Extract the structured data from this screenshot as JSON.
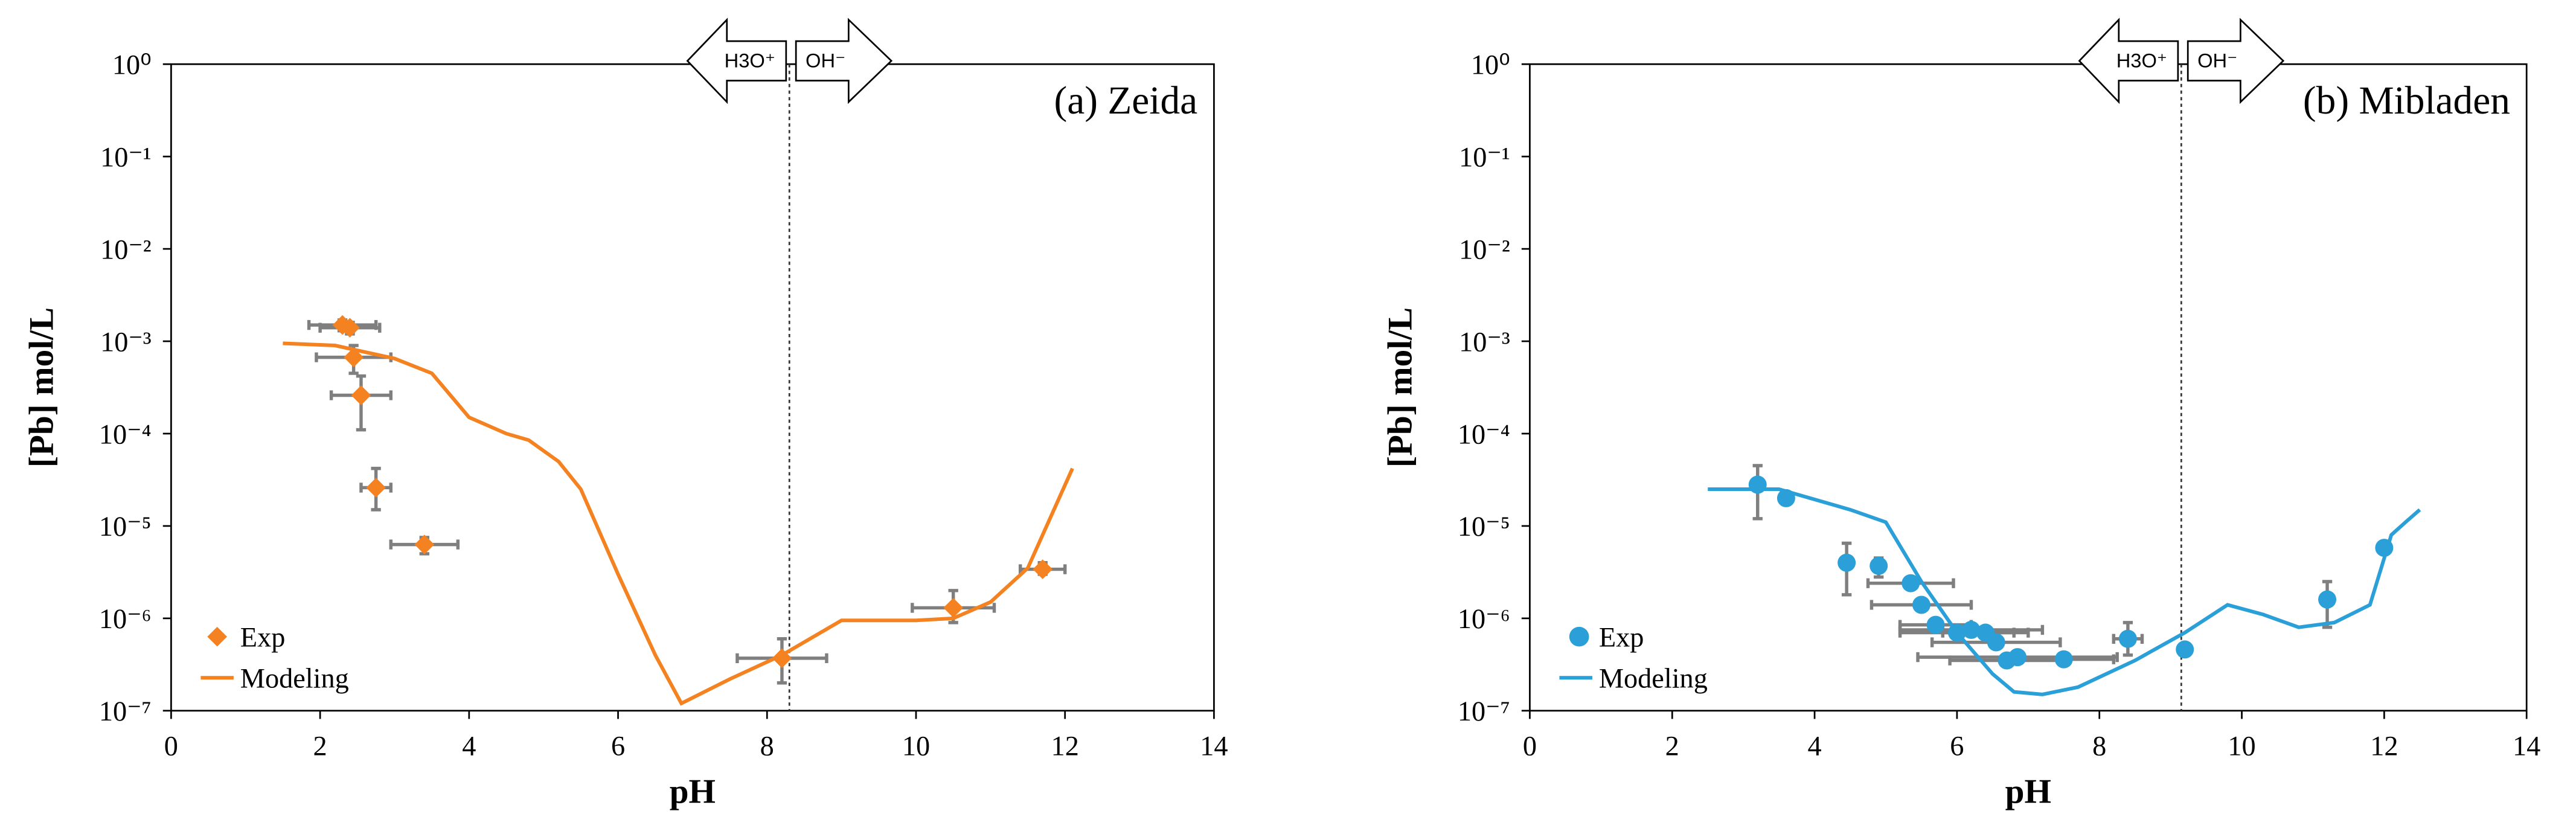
{
  "chart_data": [
    {
      "type": "scatter",
      "annotation": "(a) Zeida",
      "x_label": "pH",
      "y_label": "[Pb] mol/L",
      "xlim": [
        0,
        14
      ],
      "xticks": [
        0,
        2,
        4,
        6,
        8,
        10,
        12,
        14
      ],
      "ylim": [
        1e-07,
        1
      ],
      "log_y": true,
      "yticks": [
        {
          "value": 1e-07,
          "label": "10⁻⁷"
        },
        {
          "value": 1e-06,
          "label": "10⁻⁶"
        },
        {
          "value": 1e-05,
          "label": "10⁻⁵"
        },
        {
          "value": 0.0001,
          "label": "10⁻⁴"
        },
        {
          "value": 0.001,
          "label": "10⁻³"
        },
        {
          "value": 0.01,
          "label": "10⁻²"
        },
        {
          "value": 0.1,
          "label": "10⁻¹"
        },
        {
          "value": 1,
          "label": "10⁰"
        }
      ],
      "divider_x": 8.3,
      "arrows": [
        "H3O⁺",
        "OH⁻"
      ],
      "legend": "lower left",
      "series": [
        {
          "name": "Exp",
          "color": "#f58220",
          "marker": "diamond",
          "x": [
            2.3,
            2.4,
            2.45,
            2.55,
            2.75,
            3.4,
            8.2,
            10.5,
            11.7
          ],
          "values": [
            0.0015,
            0.0014,
            0.00067,
            0.00026,
            2.6e-05,
            6.3e-06,
            3.7e-07,
            1.3e-06,
            3.4e-06
          ],
          "x_err": [
            0.45,
            0.4,
            0.5,
            0.4,
            0.2,
            0.45,
            0.6,
            0.55,
            0.3
          ],
          "y_low": [
            0.0013,
            0.0012,
            0.00045,
            0.00011,
            1.5e-05,
            5e-06,
            2e-07,
            9e-07,
            3e-06
          ],
          "y_high": [
            0.0017,
            0.0016,
            0.0009,
            0.00042,
            4.2e-05,
            7.5e-06,
            6e-07,
            2e-06,
            4e-06
          ]
        },
        {
          "name": "Modeling",
          "color": "#f58220",
          "x": [
            1.5,
            2.2,
            3,
            3.5,
            4,
            4.5,
            4.8,
            5.2,
            5.5,
            6,
            6.5,
            6.85,
            7.5,
            8.2,
            9,
            10,
            10.5,
            11,
            11.5,
            12.1
          ],
          "values": [
            0.00095,
            0.0009,
            0.00065,
            0.00045,
            0.00015,
            0.0001,
            8.5e-05,
            5e-05,
            2.5e-05,
            3e-06,
            4e-07,
            1.2e-07,
            2.2e-07,
            4e-07,
            9.5e-07,
            9.5e-07,
            1e-06,
            1.5e-06,
            3.5e-06,
            4.2e-05
          ]
        }
      ]
    },
    {
      "type": "scatter",
      "annotation": "(b) Mibladen",
      "x_label": "pH",
      "y_label": "[Pb] mol/L",
      "xlim": [
        0,
        14
      ],
      "xticks": [
        0,
        2,
        4,
        6,
        8,
        10,
        12,
        14
      ],
      "ylim": [
        1e-07,
        1
      ],
      "log_y": true,
      "yticks": [
        {
          "value": 1e-07,
          "label": "10⁻⁷"
        },
        {
          "value": 1e-06,
          "label": "10⁻⁶"
        },
        {
          "value": 1e-05,
          "label": "10⁻⁵"
        },
        {
          "value": 0.0001,
          "label": "10⁻⁴"
        },
        {
          "value": 0.001,
          "label": "10⁻³"
        },
        {
          "value": 0.01,
          "label": "10⁻²"
        },
        {
          "value": 0.1,
          "label": "10⁻¹"
        },
        {
          "value": 1,
          "label": "10⁰"
        }
      ],
      "divider_x": 9.15,
      "arrows": [
        "H3O⁺",
        "OH⁻"
      ],
      "legend": "lower left",
      "series": [
        {
          "name": "Exp",
          "color": "#2a9fd8",
          "marker": "circle",
          "x": [
            3.2,
            3.6,
            4.45,
            4.9,
            5.35,
            5.5,
            5.7,
            6.0,
            6.2,
            6.4,
            6.55,
            6.7,
            6.85,
            7.5,
            8.4,
            9.2,
            11.2,
            12
          ],
          "values": [
            2.8e-05,
            2e-05,
            4e-06,
            3.7e-06,
            2.4e-06,
            1.4e-06,
            8.5e-07,
            7e-07,
            7.5e-07,
            7e-07,
            5.5e-07,
            3.5e-07,
            3.8e-07,
            3.6e-07,
            6e-07,
            4.6e-07,
            1.6e-06,
            5.8e-06
          ],
          "x_err": [
            null,
            null,
            null,
            null,
            0.6,
            0.7,
            0.5,
            0.8,
            1.0,
            0.6,
            0.9,
            0.8,
            1.4,
            0.7,
            0.2,
            null,
            null,
            null
          ],
          "y_low": [
            1.2e-05,
            null,
            1.8e-06,
            2.8e-06,
            null,
            null,
            null,
            null,
            null,
            null,
            null,
            null,
            null,
            null,
            4e-07,
            null,
            8e-07,
            null
          ],
          "y_high": [
            4.5e-05,
            null,
            6.5e-06,
            4.5e-06,
            null,
            null,
            null,
            null,
            null,
            null,
            null,
            null,
            null,
            null,
            9e-07,
            null,
            2.5e-06,
            null
          ]
        },
        {
          "name": "Modeling",
          "color": "#2a9fd8",
          "x": [
            2.5,
            3.5,
            4.5,
            5,
            5.5,
            6,
            6.5,
            6.8,
            7.2,
            7.7,
            8.5,
            9.2,
            9.8,
            10.3,
            10.8,
            11.3,
            11.8,
            12.1,
            12.3,
            12.5
          ],
          "values": [
            2.5e-05,
            2.5e-05,
            1.5e-05,
            1.1e-05,
            2.5e-06,
            7e-07,
            2.5e-07,
            1.6e-07,
            1.5e-07,
            1.8e-07,
            3.5e-07,
            7e-07,
            1.4e-06,
            1.1e-06,
            8e-07,
            9e-07,
            1.4e-06,
            8e-06,
            1.1e-05,
            1.5e-05
          ]
        }
      ]
    }
  ]
}
